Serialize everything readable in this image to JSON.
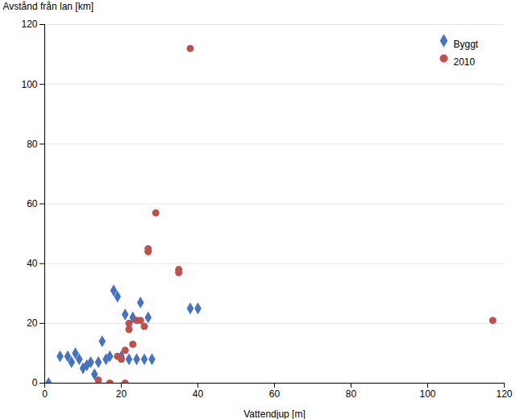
{
  "chart_data": {
    "type": "scatter",
    "xlabel": "Vattendjup [m]",
    "ylabel": "Avstånd från lan [km]",
    "xlim": [
      0,
      120
    ],
    "ylim": [
      0,
      120
    ],
    "xticks": [
      0,
      20,
      40,
      60,
      80,
      100,
      120
    ],
    "yticks": [
      0,
      20,
      40,
      60,
      80,
      100,
      120
    ],
    "grid": "y",
    "legend": "upper right",
    "series": [
      {
        "name": "Byggt",
        "color": "#4472C4",
        "marker": "diamond",
        "x": [
          1,
          4,
          6,
          7,
          8,
          9,
          10,
          11,
          12,
          13,
          14,
          15,
          16,
          17,
          18,
          19,
          20,
          21,
          22,
          23,
          24,
          25,
          26,
          27,
          28,
          38,
          40
        ],
        "values": [
          0,
          9,
          9,
          7,
          10,
          8,
          5,
          6,
          7,
          3,
          7,
          14,
          8,
          9,
          31,
          29,
          9,
          23,
          8,
          22,
          8,
          27,
          8,
          22,
          8,
          25,
          25
        ]
      },
      {
        "name": "2010",
        "color": "#C0504D",
        "marker": "circle",
        "x": [
          14,
          17,
          19,
          20,
          21,
          21,
          22,
          22,
          23,
          24,
          25,
          26,
          27,
          27,
          29,
          35,
          35,
          38,
          117
        ],
        "values": [
          1,
          0,
          9,
          8,
          0,
          11,
          18,
          20,
          13,
          21,
          21,
          19,
          44,
          45,
          57,
          37,
          38,
          112,
          21
        ]
      }
    ]
  }
}
